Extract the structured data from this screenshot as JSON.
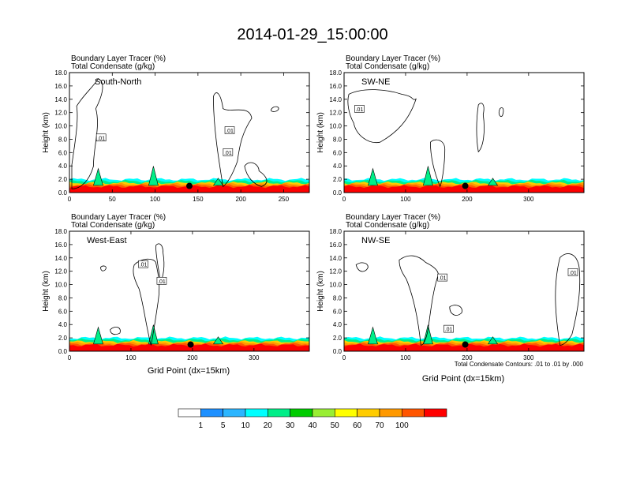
{
  "figure_title": "2014-01-29_15:00:00",
  "panel_title_line1": "Boundary Layer Tracer   (%)",
  "panel_title_line2": "Total Condensate   (g/kg)",
  "y_axis_label": "Height (km)",
  "x_axis_label": "Grid Point (dx=15km)",
  "contour_note": "Total Condensate Contours: .01 to .01 by .000",
  "colorbar": {
    "labels": [
      "1",
      "5",
      "10",
      "20",
      "30",
      "40",
      "50",
      "60",
      "70",
      "100"
    ],
    "colors": [
      "#ffffff",
      "#1e90ff",
      "#2bb5ff",
      "#00ffff",
      "#00ee88",
      "#00cc00",
      "#99ee33",
      "#ffff00",
      "#ffcc00",
      "#ff9900",
      "#ff5500",
      "#ff0000"
    ]
  },
  "chart_data": [
    {
      "type": "heatmap",
      "panel": "South-North",
      "xlim": [
        0,
        280
      ],
      "xticks": [
        0,
        50,
        100,
        150,
        200,
        250
      ],
      "ylim": [
        0,
        18
      ],
      "yticks": [
        "0.0",
        "2.0",
        "4.0",
        "6.0",
        "8.0",
        "10.0",
        "12.0",
        "14.0",
        "16.0",
        "18.0"
      ],
      "marker_x": 140,
      "marker_y": 1.0,
      "contour_labels": [
        ".01",
        ".01",
        ".01"
      ],
      "contour_label_positions_data": [
        [
          37,
          8.2
        ],
        [
          187,
          9.3
        ],
        [
          185,
          6.0
        ]
      ]
    },
    {
      "type": "heatmap",
      "panel": "SW-NE",
      "xlim": [
        0,
        390
      ],
      "xticks": [
        0,
        100,
        200,
        300
      ],
      "ylim": [
        0,
        18
      ],
      "yticks": [
        "0.0",
        "2.0",
        "4.0",
        "6.0",
        "8.0",
        "10.0",
        "12.0",
        "14.0",
        "16.0",
        "18.0"
      ],
      "marker_x": 197,
      "marker_y": 1.0,
      "contour_labels": [
        ".01"
      ],
      "contour_label_positions_data": [
        [
          25,
          12.5
        ]
      ]
    },
    {
      "type": "heatmap",
      "panel": "West-East",
      "xlim": [
        0,
        390
      ],
      "xticks": [
        0,
        100,
        200,
        300
      ],
      "ylim": [
        0,
        18
      ],
      "yticks": [
        "0.0",
        "2.0",
        "4.0",
        "6.0",
        "8.0",
        "10.0",
        "12.0",
        "14.0",
        "16.0",
        "18.0"
      ],
      "marker_x": 197,
      "marker_y": 1.0,
      "contour_labels": [
        ".01",
        ".01"
      ],
      "contour_label_positions_data": [
        [
          120,
          13.0
        ],
        [
          150,
          10.5
        ]
      ]
    },
    {
      "type": "heatmap",
      "panel": "NW-SE",
      "xlim": [
        0,
        390
      ],
      "xticks": [
        0,
        100,
        200,
        300
      ],
      "ylim": [
        0,
        18
      ],
      "yticks": [
        "0.0",
        "2.0",
        "4.0",
        "6.0",
        "8.0",
        "10.0",
        "12.0",
        "14.0",
        "16.0",
        "18.0"
      ],
      "marker_x": 197,
      "marker_y": 1.0,
      "contour_labels": [
        ".01",
        ".01",
        ".01"
      ],
      "contour_label_positions_data": [
        [
          160,
          11.0
        ],
        [
          170,
          3.3
        ],
        [
          372,
          11.8
        ]
      ]
    }
  ]
}
